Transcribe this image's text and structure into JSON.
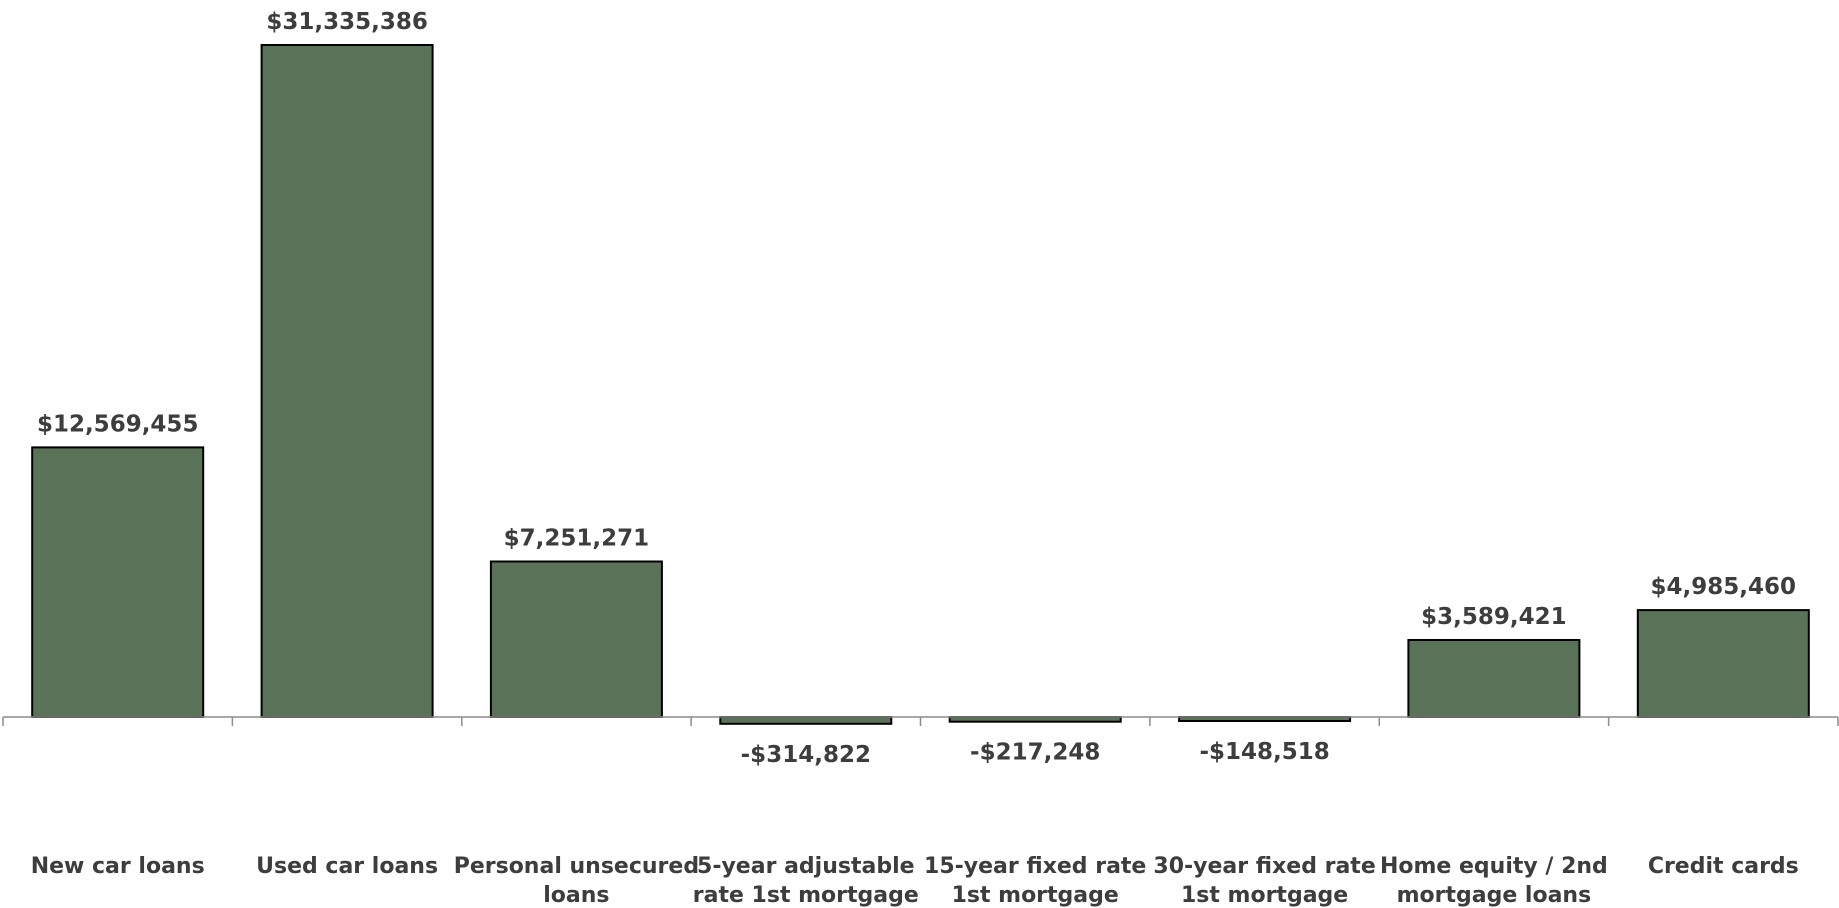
{
  "chart_data": {
    "type": "bar",
    "categories": [
      "New car loans",
      "Used car loans",
      "Personal unsecured loans",
      "5-year adjustable rate 1st mortgage",
      "15-year fixed rate 1st mortgage",
      "30-year fixed rate 1st mortgage",
      "Home equity / 2nd mortgage loans",
      "Credit cards"
    ],
    "category_lines": [
      [
        "New car loans"
      ],
      [
        "Used car loans"
      ],
      [
        "Personal unsecured",
        "loans"
      ],
      [
        "5-year adjustable",
        "rate 1st mortgage"
      ],
      [
        "15-year fixed rate",
        "1st mortgage"
      ],
      [
        "30-year fixed rate",
        "1st mortgage"
      ],
      [
        "Home equity / 2nd",
        "mortgage loans"
      ],
      [
        "Credit cards"
      ]
    ],
    "values": [
      12569455,
      31335386,
      7251271,
      -314822,
      -217248,
      -148518,
      3589421,
      4985460
    ],
    "data_labels": [
      "$12,569,455",
      "$31,335,386",
      "$7,251,271",
      "-$314,822",
      "-$217,248",
      "-$148,518",
      "$3,589,421",
      "$4,985,460"
    ],
    "title": "",
    "xlabel": "",
    "ylabel": "",
    "ylim": [
      -3000000,
      32500000
    ],
    "grid": false,
    "legend": "none",
    "bar_color": "#5a7358",
    "bar_border_color": "#000000",
    "text_color": "#3d3d3d",
    "axis_color": "#8c8c8c"
  }
}
